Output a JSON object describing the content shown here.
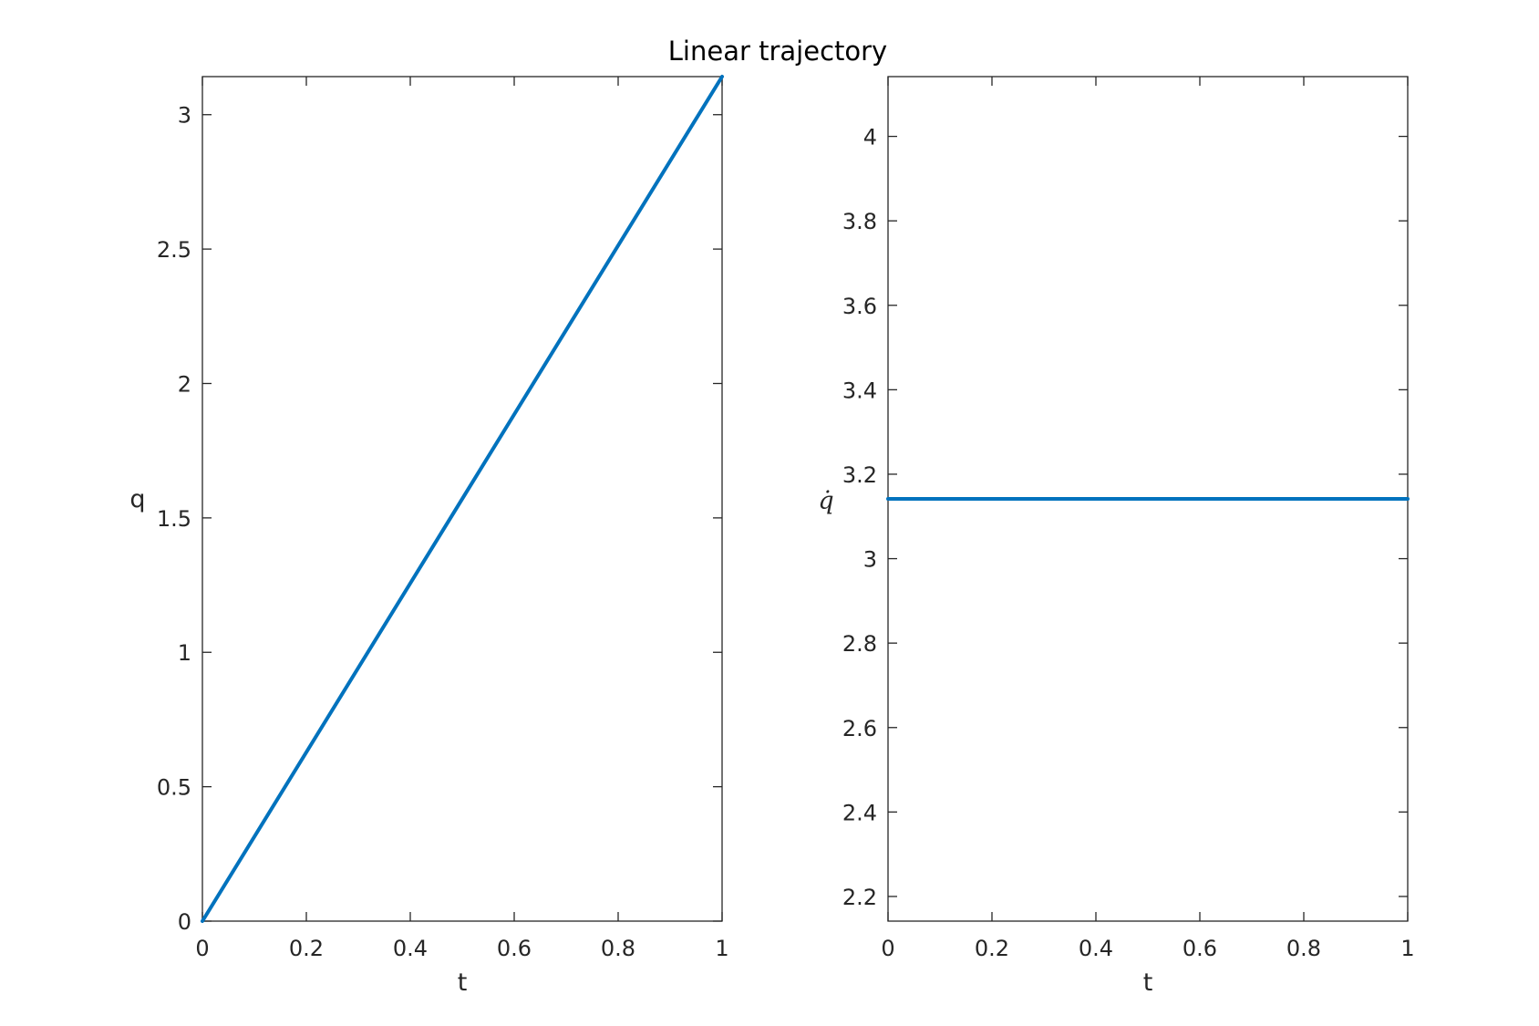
{
  "figure": {
    "title": "Linear trajectory"
  },
  "chart_data": [
    {
      "type": "line",
      "xlabel": "t",
      "ylabel": "q",
      "xlim": [
        0,
        1
      ],
      "ylim": [
        0,
        3.1416
      ],
      "xticks": [
        "0",
        "0.2",
        "0.4",
        "0.6",
        "0.8",
        "1"
      ],
      "yticks": [
        "0",
        "0.5",
        "1",
        "1.5",
        "2",
        "2.5",
        "3"
      ],
      "grid": false,
      "series": [
        {
          "x": [
            0,
            1
          ],
          "y": [
            0,
            3.1416
          ],
          "color": "#0072BD"
        }
      ]
    },
    {
      "type": "line",
      "xlabel": "t",
      "ylabel": "q̇",
      "xlim": [
        0,
        1
      ],
      "ylim": [
        2.1416,
        4.1416
      ],
      "xticks": [
        "0",
        "0.2",
        "0.4",
        "0.6",
        "0.8",
        "1"
      ],
      "yticks": [
        "2.2",
        "2.4",
        "2.6",
        "2.8",
        "3",
        "3.2",
        "3.4",
        "3.6",
        "3.8",
        "4"
      ],
      "grid": false,
      "series": [
        {
          "x": [
            0,
            1
          ],
          "y": [
            3.1416,
            3.1416
          ],
          "color": "#0072BD"
        }
      ]
    }
  ]
}
